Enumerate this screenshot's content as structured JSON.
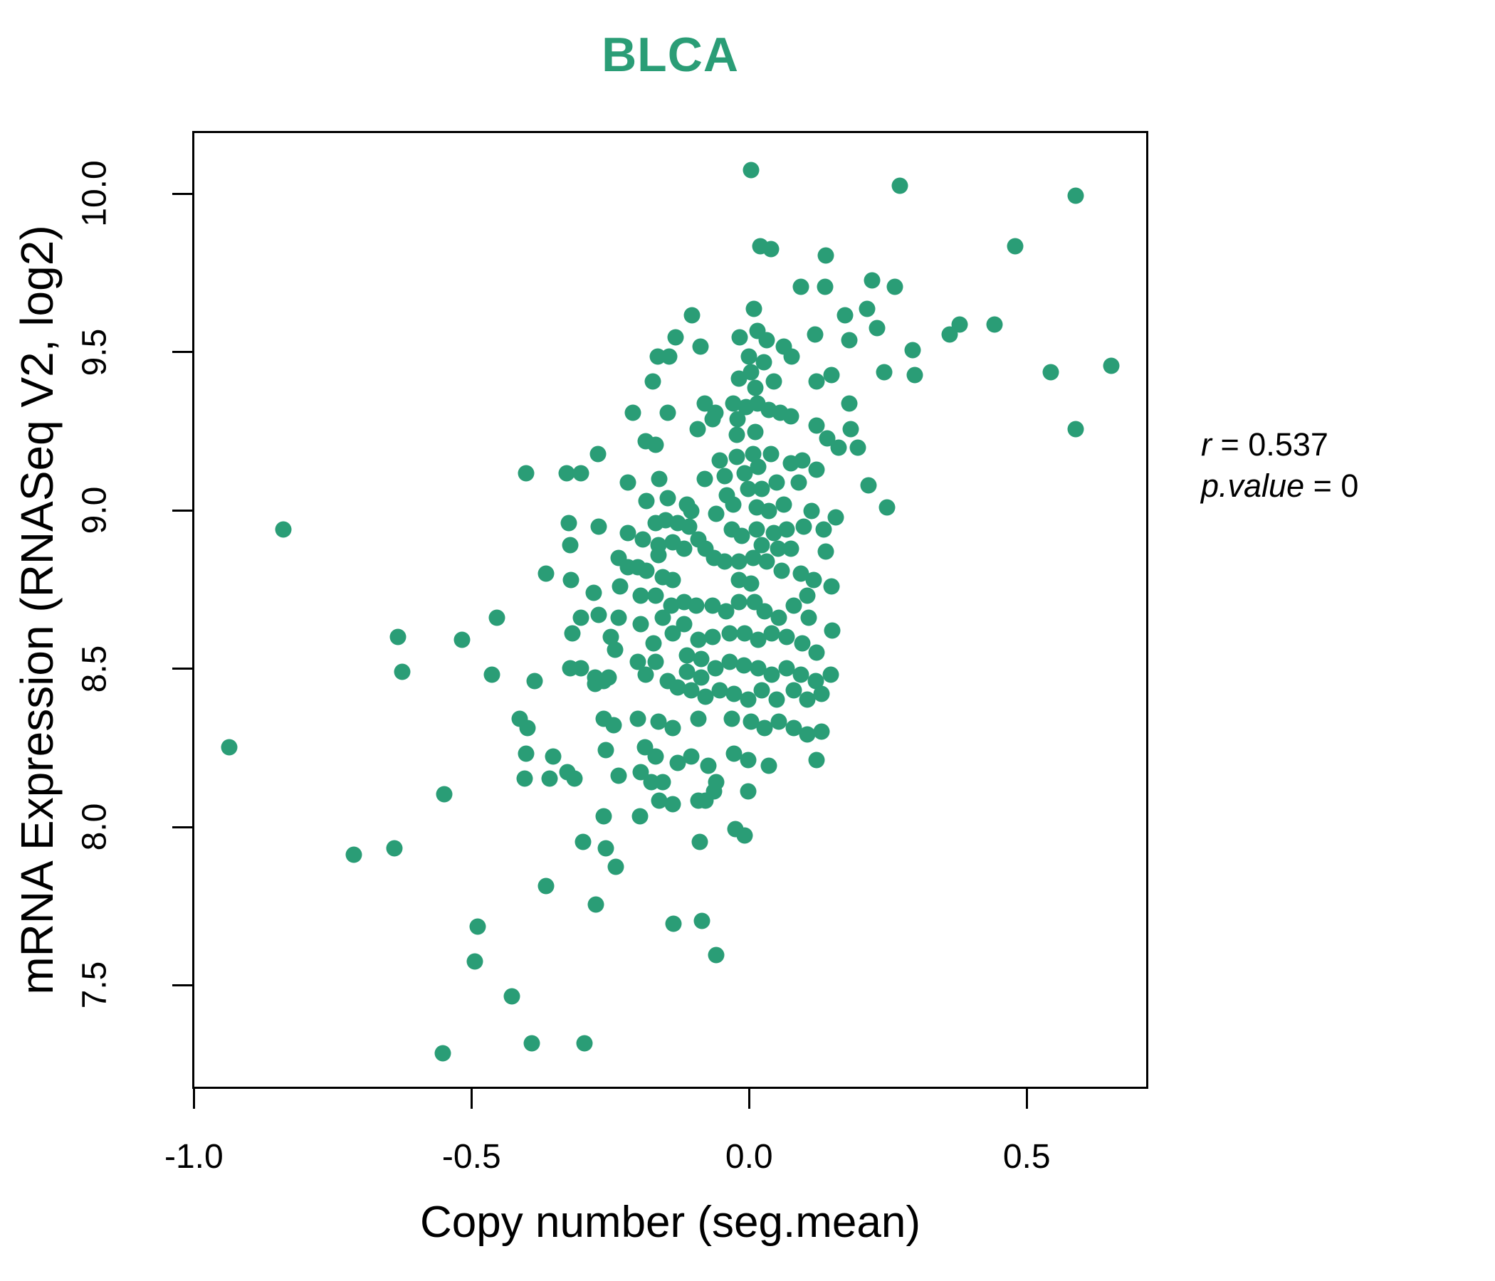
{
  "title": {
    "text": "BLCA"
  },
  "colors": {
    "accent_green": "#2a9d76",
    "axis": "#000000"
  },
  "annotation": {
    "line1_var": "r",
    "line1_rest": " = 0.537",
    "line2_var": "p.value",
    "line2_rest": " = 0"
  },
  "chart_data": {
    "type": "scatter",
    "title": "BLCA",
    "xlabel": "Copy number (seg.mean)",
    "ylabel": "mRNA Expression (RNASeq V2, log2)",
    "x_ticks": [
      -1.0,
      -0.5,
      0.0,
      0.5
    ],
    "y_ticks": [
      7.5,
      8.0,
      8.5,
      9.0,
      9.5,
      10.0
    ],
    "xlim": [
      -1.003,
      0.719
    ],
    "ylim": [
      7.173,
      10.198
    ],
    "grid": false,
    "legend": "none",
    "marker_color": "#2a9d76",
    "marker_diameter_px": 23,
    "stats": {
      "r": 0.537,
      "p_value": 0
    },
    "points": [
      [
        0.004,
        10.08
      ],
      [
        0.021,
        9.84
      ],
      [
        0.04,
        9.83
      ],
      [
        0.14,
        9.81
      ],
      [
        0.094,
        9.71
      ],
      [
        0.138,
        9.71
      ],
      [
        -0.103,
        9.62
      ],
      [
        0.009,
        9.64
      ],
      [
        -0.132,
        9.55
      ],
      [
        0.016,
        9.57
      ],
      [
        0.033,
        9.54
      ],
      [
        0.12,
        9.56
      ],
      [
        -0.087,
        9.52
      ],
      [
        -0.017,
        9.55
      ],
      [
        -0.165,
        9.49
      ],
      [
        -0.144,
        9.49
      ],
      [
        0.0,
        9.49
      ],
      [
        0.063,
        9.52
      ],
      [
        0.078,
        9.49
      ],
      [
        0.028,
        9.47
      ],
      [
        0.046,
        9.41
      ],
      [
        -0.174,
        9.41
      ],
      [
        -0.018,
        9.42
      ],
      [
        0.004,
        9.44
      ],
      [
        0.012,
        9.39
      ],
      [
        0.123,
        9.41
      ],
      [
        0.15,
        9.43
      ],
      [
        -0.21,
        9.31
      ],
      [
        -0.146,
        9.31
      ],
      [
        -0.079,
        9.34
      ],
      [
        -0.06,
        9.31
      ],
      [
        -0.028,
        9.34
      ],
      [
        -0.005,
        9.33
      ],
      [
        0.016,
        9.34
      ],
      [
        0.037,
        9.32
      ],
      [
        0.057,
        9.31
      ],
      [
        0.076,
        9.3
      ],
      [
        -0.02,
        9.29
      ],
      [
        0.012,
        9.25
      ],
      [
        -0.093,
        9.26
      ],
      [
        -0.065,
        9.29
      ],
      [
        -0.022,
        9.24
      ],
      [
        0.123,
        9.27
      ],
      [
        0.142,
        9.23
      ],
      [
        -0.187,
        9.22
      ],
      [
        -0.168,
        9.21
      ],
      [
        0.274,
        10.03
      ],
      [
        0.592,
        10.0
      ],
      [
        0.482,
        9.84
      ],
      [
        0.223,
        9.73
      ],
      [
        0.264,
        9.71
      ],
      [
        0.174,
        9.62
      ],
      [
        0.214,
        9.64
      ],
      [
        0.232,
        9.58
      ],
      [
        0.182,
        9.54
      ],
      [
        0.364,
        9.56
      ],
      [
        0.381,
        9.59
      ],
      [
        0.445,
        9.59
      ],
      [
        0.297,
        9.51
      ],
      [
        0.245,
        9.44
      ],
      [
        0.3,
        9.43
      ],
      [
        0.547,
        9.44
      ],
      [
        0.656,
        9.46
      ],
      [
        0.182,
        9.34
      ],
      [
        0.185,
        9.26
      ],
      [
        0.591,
        9.26
      ],
      [
        0.163,
        9.2
      ],
      [
        0.197,
        9.2
      ],
      [
        -0.842,
        8.94
      ],
      [
        -0.635,
        8.6
      ],
      [
        -0.519,
        8.59
      ],
      [
        -0.455,
        8.66
      ],
      [
        -0.627,
        8.49
      ],
      [
        -0.465,
        8.48
      ],
      [
        -0.94,
        8.25
      ],
      [
        -0.403,
        9.12
      ],
      [
        -0.329,
        9.12
      ],
      [
        -0.303,
        9.12
      ],
      [
        -0.273,
        9.18
      ],
      [
        -0.053,
        9.16
      ],
      [
        -0.022,
        9.17
      ],
      [
        0.008,
        9.18
      ],
      [
        0.04,
        9.18
      ],
      [
        0.076,
        9.15
      ],
      [
        0.097,
        9.16
      ],
      [
        0.123,
        9.13
      ],
      [
        -0.044,
        9.11
      ],
      [
        -0.008,
        9.12
      ],
      [
        0.017,
        9.14
      ],
      [
        -0.079,
        9.1
      ],
      [
        -0.219,
        9.09
      ],
      [
        -0.162,
        9.1
      ],
      [
        0.091,
        9.09
      ],
      [
        -0.185,
        9.03
      ],
      [
        -0.146,
        9.04
      ],
      [
        -0.112,
        9.02
      ],
      [
        -0.104,
        9.0
      ],
      [
        -0.04,
        9.05
      ],
      [
        -0.028,
        9.02
      ],
      [
        -0.001,
        9.07
      ],
      [
        0.024,
        9.07
      ],
      [
        0.05,
        9.09
      ],
      [
        0.014,
        9.01
      ],
      [
        0.037,
        9.0
      ],
      [
        0.063,
        9.02
      ],
      [
        0.114,
        9.0
      ],
      [
        -0.059,
        8.99
      ],
      [
        -0.15,
        8.97
      ],
      [
        -0.169,
        8.96
      ],
      [
        -0.129,
        8.96
      ],
      [
        -0.108,
        8.95
      ],
      [
        -0.326,
        8.96
      ],
      [
        -0.323,
        8.89
      ],
      [
        -0.271,
        8.95
      ],
      [
        -0.219,
        8.93
      ],
      [
        -0.191,
        8.91
      ],
      [
        -0.163,
        8.89
      ],
      [
        -0.137,
        8.9
      ],
      [
        -0.117,
        8.88
      ],
      [
        -0.091,
        8.91
      ],
      [
        -0.078,
        8.88
      ],
      [
        -0.031,
        8.94
      ],
      [
        -0.012,
        8.92
      ],
      [
        0.014,
        8.94
      ],
      [
        0.024,
        8.89
      ],
      [
        0.046,
        8.93
      ],
      [
        0.069,
        8.94
      ],
      [
        0.1,
        8.95
      ],
      [
        0.136,
        8.94
      ],
      [
        0.053,
        8.88
      ],
      [
        0.076,
        8.88
      ],
      [
        0.14,
        8.87
      ],
      [
        -0.236,
        8.85
      ],
      [
        -0.219,
        8.82
      ],
      [
        -0.201,
        8.82
      ],
      [
        -0.185,
        8.81
      ],
      [
        -0.163,
        8.86
      ],
      [
        -0.155,
        8.79
      ],
      [
        -0.138,
        8.78
      ],
      [
        -0.367,
        8.8
      ],
      [
        -0.322,
        8.78
      ],
      [
        -0.063,
        8.85
      ],
      [
        -0.044,
        8.84
      ],
      [
        -0.018,
        8.84
      ],
      [
        0.008,
        8.85
      ],
      [
        0.033,
        8.84
      ],
      [
        0.059,
        8.81
      ],
      [
        0.094,
        8.8
      ],
      [
        0.117,
        8.78
      ],
      [
        -0.018,
        8.78
      ],
      [
        0.004,
        8.77
      ],
      [
        -0.281,
        8.74
      ],
      [
        -0.233,
        8.76
      ],
      [
        -0.195,
        8.73
      ],
      [
        -0.168,
        8.73
      ],
      [
        -0.14,
        8.7
      ],
      [
        -0.117,
        8.71
      ],
      [
        -0.095,
        8.7
      ],
      [
        -0.065,
        8.7
      ],
      [
        -0.041,
        8.68
      ],
      [
        -0.018,
        8.71
      ],
      [
        0.01,
        8.71
      ],
      [
        0.029,
        8.68
      ],
      [
        0.055,
        8.66
      ],
      [
        0.081,
        8.7
      ],
      [
        0.106,
        8.73
      ],
      [
        0.108,
        8.66
      ],
      [
        -0.304,
        8.66
      ],
      [
        -0.271,
        8.67
      ],
      [
        -0.236,
        8.66
      ],
      [
        -0.195,
        8.64
      ],
      [
        -0.155,
        8.66
      ],
      [
        -0.117,
        8.64
      ],
      [
        -0.137,
        8.61
      ],
      [
        -0.091,
        8.59
      ],
      [
        -0.065,
        8.6
      ],
      [
        -0.035,
        8.61
      ],
      [
        -0.008,
        8.61
      ],
      [
        0.017,
        8.59
      ],
      [
        0.042,
        8.61
      ],
      [
        0.068,
        8.6
      ],
      [
        0.097,
        8.58
      ],
      [
        0.123,
        8.55
      ],
      [
        -0.249,
        8.6
      ],
      [
        -0.242,
        8.56
      ],
      [
        -0.172,
        8.58
      ],
      [
        -0.319,
        8.61
      ],
      [
        -0.304,
        8.5
      ],
      [
        -0.278,
        8.47
      ],
      [
        -0.253,
        8.47
      ],
      [
        -0.201,
        8.52
      ],
      [
        -0.168,
        8.52
      ],
      [
        -0.186,
        8.48
      ],
      [
        -0.112,
        8.54
      ],
      [
        -0.086,
        8.53
      ],
      [
        -0.112,
        8.49
      ],
      [
        -0.086,
        8.47
      ],
      [
        -0.06,
        8.5
      ],
      [
        -0.035,
        8.52
      ],
      [
        -0.009,
        8.51
      ],
      [
        0.017,
        8.5
      ],
      [
        0.042,
        8.48
      ],
      [
        0.068,
        8.5
      ],
      [
        0.094,
        8.48
      ],
      [
        0.121,
        8.46
      ],
      [
        -0.387,
        8.46
      ],
      [
        -0.323,
        8.5
      ],
      [
        -0.278,
        8.45
      ],
      [
        -0.262,
        8.46
      ],
      [
        -0.146,
        8.46
      ],
      [
        -0.129,
        8.44
      ],
      [
        -0.104,
        8.43
      ],
      [
        -0.078,
        8.41
      ],
      [
        -0.053,
        8.43
      ],
      [
        -0.027,
        8.42
      ],
      [
        -0.001,
        8.4
      ],
      [
        0.024,
        8.43
      ],
      [
        0.05,
        8.4
      ],
      [
        0.081,
        8.43
      ],
      [
        0.106,
        8.4
      ],
      [
        0.132,
        8.42
      ],
      [
        -0.415,
        8.34
      ],
      [
        -0.4,
        8.31
      ],
      [
        -0.262,
        8.34
      ],
      [
        -0.245,
        8.32
      ],
      [
        -0.201,
        8.34
      ],
      [
        -0.163,
        8.33
      ],
      [
        -0.137,
        8.31
      ],
      [
        -0.091,
        8.34
      ],
      [
        -0.031,
        8.34
      ],
      [
        0.004,
        8.33
      ],
      [
        0.029,
        8.31
      ],
      [
        0.055,
        8.33
      ],
      [
        0.081,
        8.31
      ],
      [
        0.106,
        8.29
      ],
      [
        0.132,
        8.3
      ],
      [
        -0.403,
        8.23
      ],
      [
        -0.354,
        8.22
      ],
      [
        -0.258,
        8.24
      ],
      [
        -0.188,
        8.25
      ],
      [
        -0.168,
        8.22
      ],
      [
        -0.129,
        8.2
      ],
      [
        -0.104,
        8.22
      ],
      [
        -0.073,
        8.19
      ],
      [
        -0.027,
        8.23
      ],
      [
        -0.001,
        8.21
      ],
      [
        0.037,
        8.19
      ],
      [
        0.123,
        8.21
      ],
      [
        0.217,
        9.08
      ],
      [
        0.25,
        9.01
      ],
      [
        0.158,
        8.98
      ],
      [
        0.15,
        8.76
      ],
      [
        0.151,
        8.62
      ],
      [
        0.149,
        8.48
      ],
      [
        -0.551,
        8.1
      ],
      [
        -0.714,
        7.91
      ],
      [
        -0.641,
        7.93
      ],
      [
        -0.49,
        7.68
      ],
      [
        -0.496,
        7.57
      ],
      [
        -0.428,
        7.46
      ],
      [
        -0.554,
        7.28
      ],
      [
        -0.405,
        8.15
      ],
      [
        -0.36,
        8.15
      ],
      [
        -0.328,
        8.17
      ],
      [
        -0.315,
        8.15
      ],
      [
        -0.236,
        8.16
      ],
      [
        -0.195,
        8.17
      ],
      [
        -0.176,
        8.14
      ],
      [
        -0.155,
        8.14
      ],
      [
        -0.137,
        8.07
      ],
      [
        -0.162,
        8.08
      ],
      [
        -0.091,
        8.08
      ],
      [
        -0.078,
        8.08
      ],
      [
        -0.063,
        8.11
      ],
      [
        -0.059,
        8.14
      ],
      [
        -0.001,
        8.11
      ],
      [
        -0.262,
        8.03
      ],
      [
        -0.197,
        8.03
      ],
      [
        -0.024,
        7.99
      ],
      [
        -0.008,
        7.97
      ],
      [
        -0.3,
        7.95
      ],
      [
        -0.259,
        7.93
      ],
      [
        -0.088,
        7.95
      ],
      [
        -0.24,
        7.87
      ],
      [
        -0.367,
        7.81
      ],
      [
        -0.277,
        7.75
      ],
      [
        -0.136,
        7.69
      ],
      [
        -0.085,
        7.7
      ],
      [
        -0.059,
        7.59
      ],
      [
        -0.392,
        7.31
      ],
      [
        -0.297,
        7.31
      ]
    ]
  }
}
